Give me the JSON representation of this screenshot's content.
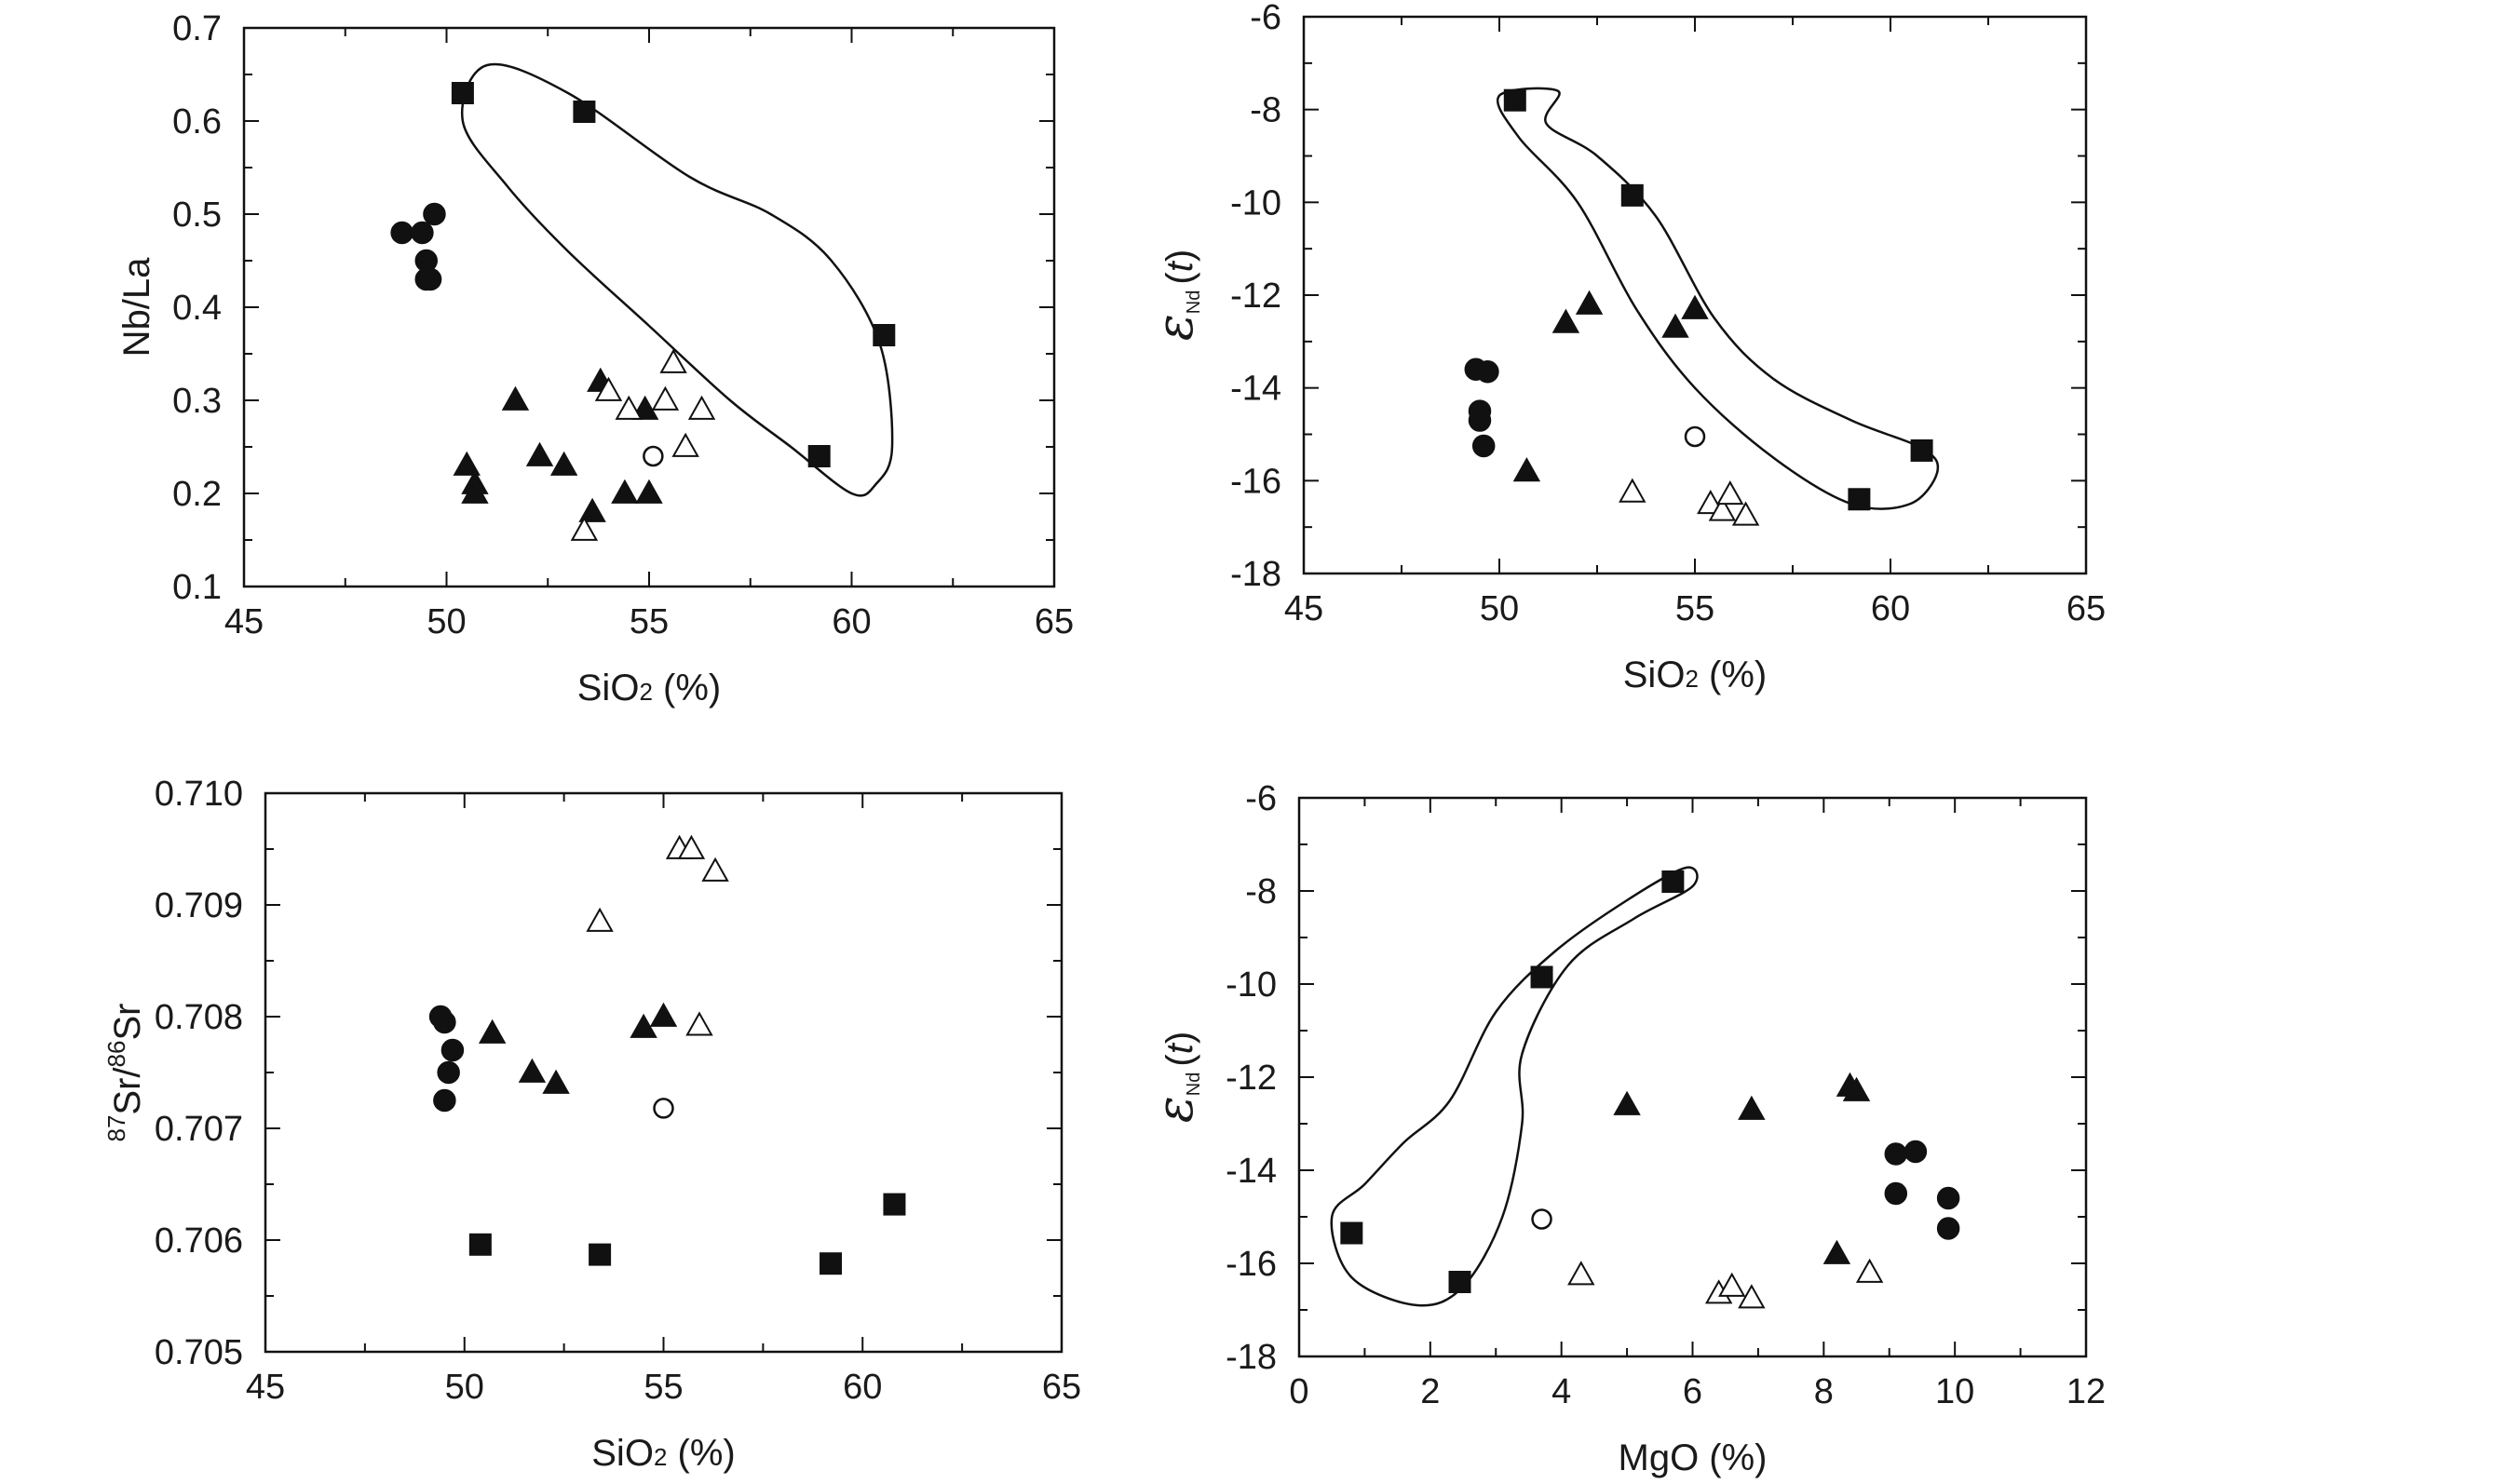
{
  "chart_data": [
    {
      "type": "scatter",
      "xlabel": "SiO2 (%)",
      "ylabel": "Nb/La",
      "xlim": [
        45,
        65
      ],
      "ylim": [
        0.1,
        0.7
      ],
      "xticks": [
        "45",
        "50",
        "55",
        "60",
        "65"
      ],
      "yticks": [
        "0.1",
        "0.2",
        "0.3",
        "0.4",
        "0.5",
        "0.6",
        "0.7"
      ],
      "series": [
        {
          "name": "filled-square",
          "marker": "square",
          "filled": true,
          "x": [
            50.4,
            53.4,
            59.2,
            60.8
          ],
          "y": [
            0.63,
            0.61,
            0.24,
            0.37
          ]
        },
        {
          "name": "filled-circle",
          "marker": "circle",
          "filled": true,
          "x": [
            48.9,
            49.4,
            49.7,
            49.5,
            49.5,
            49.6
          ],
          "y": [
            0.48,
            0.48,
            0.5,
            0.45,
            0.43,
            0.43
          ]
        },
        {
          "name": "filled-triangle",
          "marker": "triangle",
          "filled": true,
          "x": [
            50.5,
            50.7,
            50.7,
            51.7,
            52.3,
            52.9,
            53.6,
            53.8,
            54.4,
            54.9,
            55.0
          ],
          "y": [
            0.23,
            0.21,
            0.2,
            0.3,
            0.24,
            0.23,
            0.18,
            0.32,
            0.2,
            0.29,
            0.2
          ]
        },
        {
          "name": "open-triangle",
          "marker": "triangle",
          "filled": false,
          "x": [
            53.4,
            54.0,
            54.5,
            55.4,
            55.6,
            55.9,
            56.3
          ],
          "y": [
            0.16,
            0.31,
            0.29,
            0.3,
            0.34,
            0.25,
            0.29
          ]
        },
        {
          "name": "open-circle",
          "marker": "circle",
          "filled": false,
          "x": [
            55.1
          ],
          "y": [
            0.24
          ]
        }
      ],
      "envelope": [
        [
          50.4,
          0.6
        ],
        [
          51.0,
          0.66
        ],
        [
          53.0,
          0.63
        ],
        [
          56.0,
          0.54
        ],
        [
          58.0,
          0.5
        ],
        [
          59.5,
          0.45
        ],
        [
          60.7,
          0.36
        ],
        [
          61.0,
          0.25
        ],
        [
          60.6,
          0.21
        ],
        [
          60.0,
          0.2
        ],
        [
          58.5,
          0.25
        ],
        [
          57.0,
          0.3
        ],
        [
          55.0,
          0.38
        ],
        [
          53.0,
          0.46
        ],
        [
          51.5,
          0.53
        ],
        [
          50.4,
          0.6
        ]
      ]
    },
    {
      "type": "scatter",
      "xlabel": "SiO2 (%)",
      "ylabel": "εNd(t)",
      "xlim": [
        45,
        65
      ],
      "ylim": [
        -18,
        -6
      ],
      "xticks": [
        "45",
        "50",
        "55",
        "60",
        "65"
      ],
      "yticks": [
        "-18",
        "-16",
        "-14",
        "-12",
        "-10",
        "-8",
        "-6"
      ],
      "series": [
        {
          "name": "filled-square",
          "marker": "square",
          "filled": true,
          "x": [
            50.4,
            53.4,
            59.2,
            60.8
          ],
          "y": [
            -7.8,
            -9.85,
            -16.4,
            -15.35
          ]
        },
        {
          "name": "filled-circle",
          "marker": "circle",
          "filled": true,
          "x": [
            49.4,
            49.7,
            49.5,
            49.5,
            49.6
          ],
          "y": [
            -13.6,
            -13.65,
            -14.5,
            -14.7,
            -15.25
          ]
        },
        {
          "name": "filled-triangle",
          "marker": "triangle",
          "filled": true,
          "x": [
            50.7,
            51.7,
            52.3,
            54.5,
            55.0
          ],
          "y": [
            -15.8,
            -12.6,
            -12.2,
            -12.7,
            -12.3
          ]
        },
        {
          "name": "open-triangle",
          "marker": "triangle",
          "filled": false,
          "x": [
            53.4,
            55.4,
            55.7,
            55.9,
            56.3
          ],
          "y": [
            -16.25,
            -16.5,
            -16.65,
            -16.3,
            -16.75
          ]
        },
        {
          "name": "open-circle",
          "marker": "circle",
          "filled": false,
          "x": [
            55.0
          ],
          "y": [
            -15.05
          ]
        }
      ],
      "envelope": [
        [
          50.0,
          -7.7
        ],
        [
          51.5,
          -7.6
        ],
        [
          51.2,
          -8.3
        ],
        [
          52.5,
          -9.0
        ],
        [
          54.0,
          -10.3
        ],
        [
          55.5,
          -12.5
        ],
        [
          57.0,
          -13.8
        ],
        [
          59.0,
          -14.7
        ],
        [
          60.8,
          -15.3
        ],
        [
          61.2,
          -15.8
        ],
        [
          60.5,
          -16.5
        ],
        [
          59.0,
          -16.5
        ],
        [
          57.0,
          -15.5
        ],
        [
          55.0,
          -14.0
        ],
        [
          53.5,
          -12.3
        ],
        [
          52.0,
          -10.0
        ],
        [
          50.5,
          -8.6
        ],
        [
          50.0,
          -7.7
        ]
      ]
    },
    {
      "type": "scatter",
      "xlabel": "SiO2 (%)",
      "ylabel": "87Sr/86Sr",
      "xlim": [
        45,
        65
      ],
      "ylim": [
        0.705,
        0.71
      ],
      "xticks": [
        "45",
        "50",
        "55",
        "60",
        "65"
      ],
      "yticks": [
        "0.705",
        "0.706",
        "0.707",
        "0.708",
        "0.709",
        "0.710"
      ],
      "series": [
        {
          "name": "filled-square",
          "marker": "square",
          "filled": true,
          "x": [
            50.4,
            53.4,
            59.2,
            60.8
          ],
          "y": [
            0.70596,
            0.70587,
            0.70579,
            0.70632
          ]
        },
        {
          "name": "filled-circle",
          "marker": "circle",
          "filled": true,
          "x": [
            49.4,
            49.5,
            49.7,
            49.6,
            49.5
          ],
          "y": [
            0.708,
            0.70795,
            0.7077,
            0.7075,
            0.70725
          ]
        },
        {
          "name": "filled-triangle",
          "marker": "triangle",
          "filled": true,
          "x": [
            50.7,
            51.7,
            52.3,
            54.5,
            55.0
          ],
          "y": [
            0.70785,
            0.7075,
            0.7074,
            0.7079,
            0.708
          ]
        },
        {
          "name": "open-triangle",
          "marker": "triangle",
          "filled": false,
          "x": [
            53.4,
            55.4,
            55.7,
            56.3,
            55.9
          ],
          "y": [
            0.70885,
            0.7095,
            0.7095,
            0.7093,
            0.70792
          ]
        },
        {
          "name": "open-circle",
          "marker": "circle",
          "filled": false,
          "x": [
            55.0
          ],
          "y": [
            0.70718
          ]
        }
      ]
    },
    {
      "type": "scatter",
      "xlabel": "MgO (%)",
      "ylabel": "εNd(t)",
      "xlim": [
        0,
        12
      ],
      "ylim": [
        -18,
        -6
      ],
      "xticks": [
        "0",
        "2",
        "4",
        "6",
        "8",
        "10",
        "12"
      ],
      "yticks": [
        "-18",
        "-16",
        "-14",
        "-12",
        "-10",
        "-8",
        "-6"
      ],
      "series": [
        {
          "name": "filled-square",
          "marker": "square",
          "filled": true,
          "x": [
            0.8,
            2.45,
            3.7,
            5.7
          ],
          "y": [
            -15.35,
            -16.4,
            -9.85,
            -7.8
          ]
        },
        {
          "name": "filled-circle",
          "marker": "circle",
          "filled": true,
          "x": [
            9.1,
            9.4,
            9.1,
            9.9,
            9.9
          ],
          "y": [
            -13.65,
            -13.6,
            -14.5,
            -14.6,
            -15.25
          ]
        },
        {
          "name": "filled-triangle",
          "marker": "triangle",
          "filled": true,
          "x": [
            5.0,
            6.9,
            8.4,
            8.5,
            8.2
          ],
          "y": [
            -12.6,
            -12.7,
            -12.2,
            -12.3,
            -15.8
          ]
        },
        {
          "name": "open-triangle",
          "marker": "triangle",
          "filled": false,
          "x": [
            4.3,
            6.4,
            6.6,
            6.9,
            8.7
          ],
          "y": [
            -16.25,
            -16.65,
            -16.5,
            -16.75,
            -16.2
          ]
        },
        {
          "name": "open-circle",
          "marker": "circle",
          "filled": false,
          "x": [
            3.7
          ],
          "y": [
            -15.05
          ]
        }
      ],
      "envelope": [
        [
          0.5,
          -15.0
        ],
        [
          1.0,
          -14.3
        ],
        [
          1.6,
          -13.4
        ],
        [
          2.3,
          -12.5
        ],
        [
          3.0,
          -10.6
        ],
        [
          3.9,
          -9.3
        ],
        [
          5.0,
          -8.2
        ],
        [
          5.9,
          -7.5
        ],
        [
          6.0,
          -7.9
        ],
        [
          5.1,
          -8.6
        ],
        [
          4.1,
          -9.6
        ],
        [
          3.4,
          -11.5
        ],
        [
          3.4,
          -13.0
        ],
        [
          3.1,
          -15.0
        ],
        [
          2.5,
          -16.5
        ],
        [
          1.8,
          -16.9
        ],
        [
          0.8,
          -16.3
        ],
        [
          0.5,
          -15.0
        ]
      ]
    }
  ]
}
